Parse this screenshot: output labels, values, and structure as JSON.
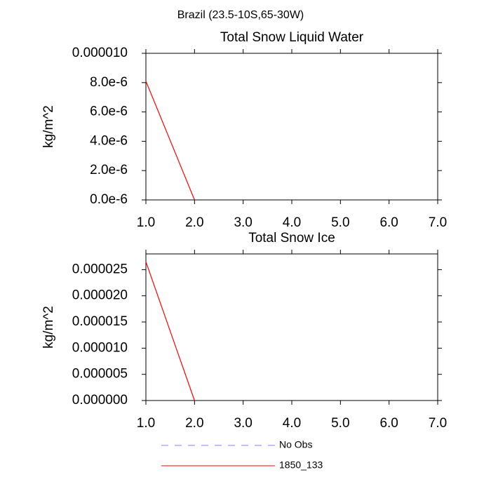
{
  "title": "Brazil (23.5-10S,65-30W)",
  "chart_data": [
    {
      "type": "line",
      "title": "Total Snow Liquid Water",
      "y_label": "kg/m^2",
      "x": [
        1,
        2
      ],
      "values": [
        8.1e-06,
        0
      ],
      "color": "#ff0000",
      "xlim": [
        1,
        7
      ],
      "xticks": [
        {
          "value": 1,
          "label": "1.0"
        },
        {
          "value": 2,
          "label": "2.0"
        },
        {
          "value": 3,
          "label": "3.0"
        },
        {
          "value": 4,
          "label": "4.0"
        },
        {
          "value": 5,
          "label": "5.0"
        },
        {
          "value": 6,
          "label": "6.0"
        },
        {
          "value": 7,
          "label": "7.0"
        }
      ],
      "ylim": [
        0,
        1e-05
      ],
      "yticks": [
        {
          "value": 0,
          "label": "0.0e-6"
        },
        {
          "value": 2e-06,
          "label": "2.0e-6"
        },
        {
          "value": 4e-06,
          "label": "4.0e-6"
        },
        {
          "value": 6e-06,
          "label": "6.0e-6"
        },
        {
          "value": 8e-06,
          "label": "8.0e-6"
        },
        {
          "value": 1e-05,
          "label": "0.000010"
        }
      ]
    },
    {
      "type": "line",
      "title": "Total Snow Ice",
      "y_label": "kg/m^2",
      "x": [
        1,
        2
      ],
      "values": [
        2.65e-05,
        0
      ],
      "color": "#ff0000",
      "xlim": [
        1,
        7
      ],
      "xticks": [
        {
          "value": 1,
          "label": "1.0"
        },
        {
          "value": 2,
          "label": "2.0"
        },
        {
          "value": 3,
          "label": "3.0"
        },
        {
          "value": 4,
          "label": "4.0"
        },
        {
          "value": 5,
          "label": "5.0"
        },
        {
          "value": 6,
          "label": "6.0"
        },
        {
          "value": 7,
          "label": "7.0"
        }
      ],
      "ylim": [
        0,
        2.8e-05
      ],
      "yticks": [
        {
          "value": 0,
          "label": "0.000000"
        },
        {
          "value": 5e-06,
          "label": "0.000005"
        },
        {
          "value": 1e-05,
          "label": "0.000010"
        },
        {
          "value": 1.5e-05,
          "label": "0.000015"
        },
        {
          "value": 2e-05,
          "label": "0.000020"
        },
        {
          "value": 2.5e-05,
          "label": "0.000025"
        }
      ]
    }
  ],
  "legend": [
    {
      "name": "No Obs",
      "color": "#8080ff",
      "dashed": true
    },
    {
      "name": "1850_133",
      "color": "#ff0000",
      "dashed": false
    }
  ]
}
